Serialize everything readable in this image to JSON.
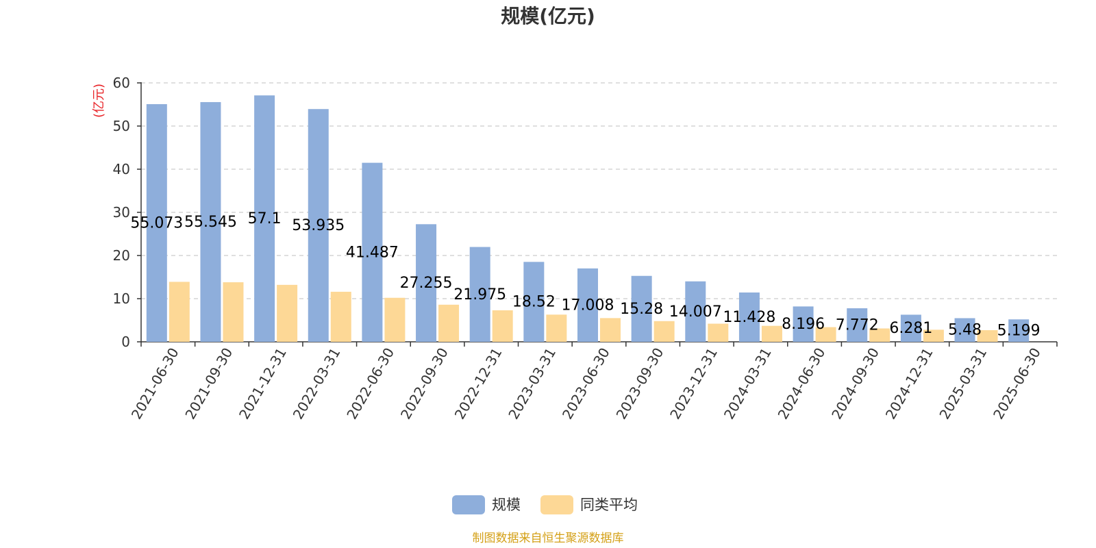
{
  "chart_data": {
    "type": "bar",
    "title": "规模(亿元)",
    "ylabel": "(亿元)",
    "xlabel": "",
    "ylim": [
      0,
      60
    ],
    "yticks": [
      0,
      10,
      20,
      30,
      40,
      50,
      60
    ],
    "grid": true,
    "legend_position": "bottom",
    "categories": [
      "2021-06-30",
      "2021-09-30",
      "2021-12-31",
      "2022-03-31",
      "2022-06-30",
      "2022-09-30",
      "2022-12-31",
      "2023-03-31",
      "2023-06-30",
      "2023-09-30",
      "2023-12-31",
      "2024-03-31",
      "2024-06-30",
      "2024-09-30",
      "2024-12-31",
      "2025-03-31",
      "2025-06-30"
    ],
    "series": [
      {
        "name": "规模",
        "color": "#8eaedb",
        "values": [
          55.073,
          55.545,
          57.1,
          53.935,
          41.487,
          27.255,
          21.975,
          18.52,
          17.008,
          15.28,
          14.007,
          11.428,
          8.196,
          7.772,
          6.281,
          5.48,
          5.199
        ],
        "labels": [
          "55.073",
          "55.545",
          "57.1",
          "53.935",
          "41.487",
          "27.255",
          "21.975",
          "18.52",
          "17.008",
          "15.28",
          "14.007",
          "11.428",
          "8.196",
          "7.772",
          "6.281",
          "5.48",
          "5.199"
        ]
      },
      {
        "name": "同类平均",
        "color": "#fdd896",
        "values": [
          13.9,
          13.8,
          13.2,
          11.6,
          10.2,
          8.6,
          7.3,
          6.3,
          5.5,
          4.8,
          4.2,
          3.7,
          3.4,
          3.1,
          2.8,
          2.7,
          null
        ]
      }
    ]
  },
  "footer": {
    "source": "制图数据来自恒生聚源数据库",
    "source_color": "#d4a017"
  },
  "colors": {
    "ylabel_color": "#e8262a",
    "grid_color": "#cccccc",
    "axis_color": "#333333"
  }
}
